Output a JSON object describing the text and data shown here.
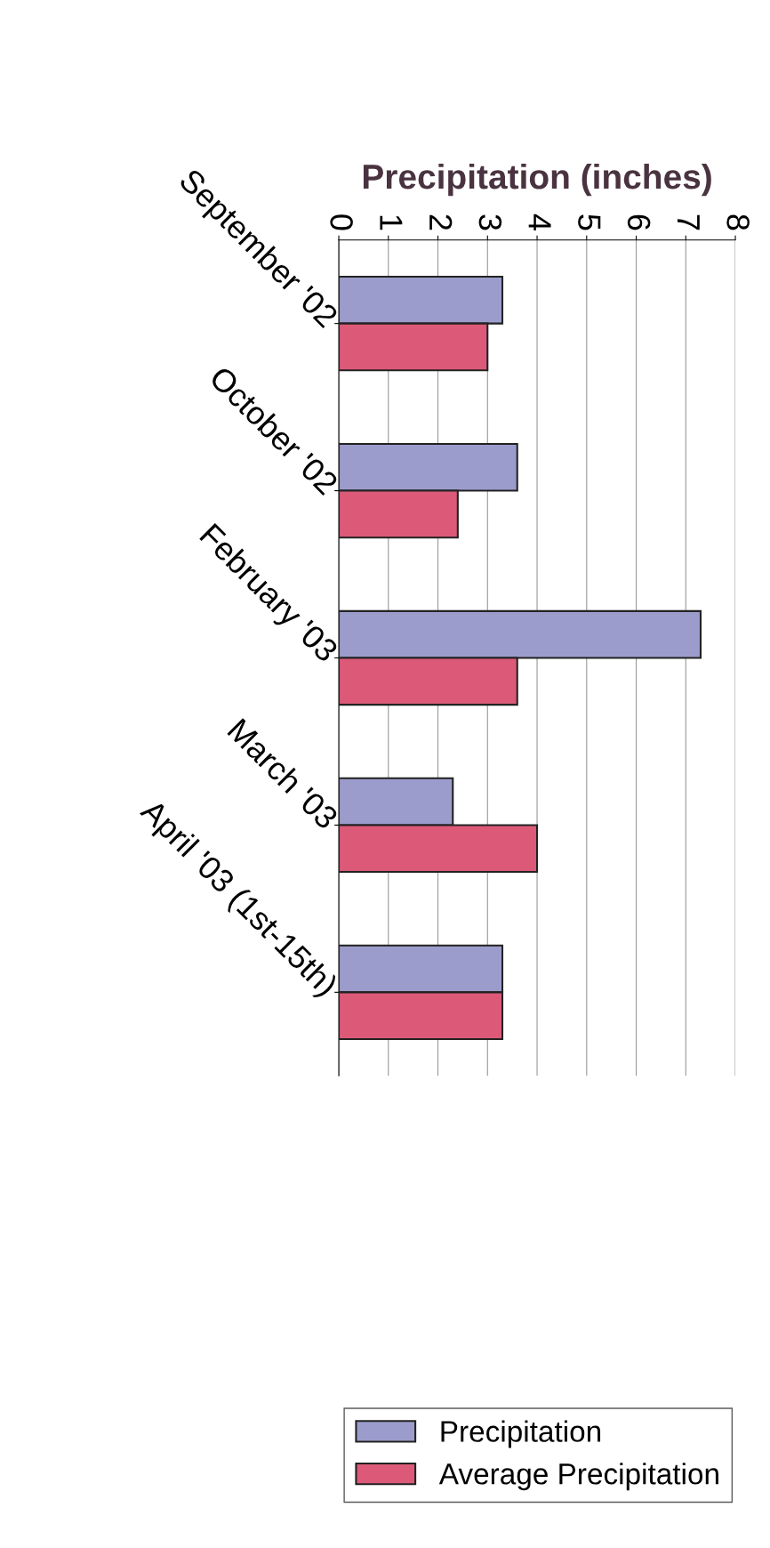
{
  "chart_data": {
    "type": "bar",
    "orientation": "horizontal",
    "xlabel": "Precipitation (inches)",
    "categories": [
      "September '02",
      "October '02",
      "February '03",
      "March '03",
      "April '03 (1st-15th)"
    ],
    "series": [
      {
        "name": "Precipitation",
        "color": "#9c9ccc",
        "values": [
          3.3,
          3.6,
          7.3,
          2.3,
          3.3
        ]
      },
      {
        "name": "Average Precipitation",
        "color": "#dc5a78",
        "values": [
          3.0,
          2.4,
          3.6,
          4.0,
          3.3
        ]
      }
    ],
    "xlim": [
      0,
      8
    ],
    "xticks": [
      0,
      1,
      2,
      3,
      4,
      5,
      6,
      7,
      8
    ],
    "grid": "x",
    "legend": "bottom right"
  }
}
